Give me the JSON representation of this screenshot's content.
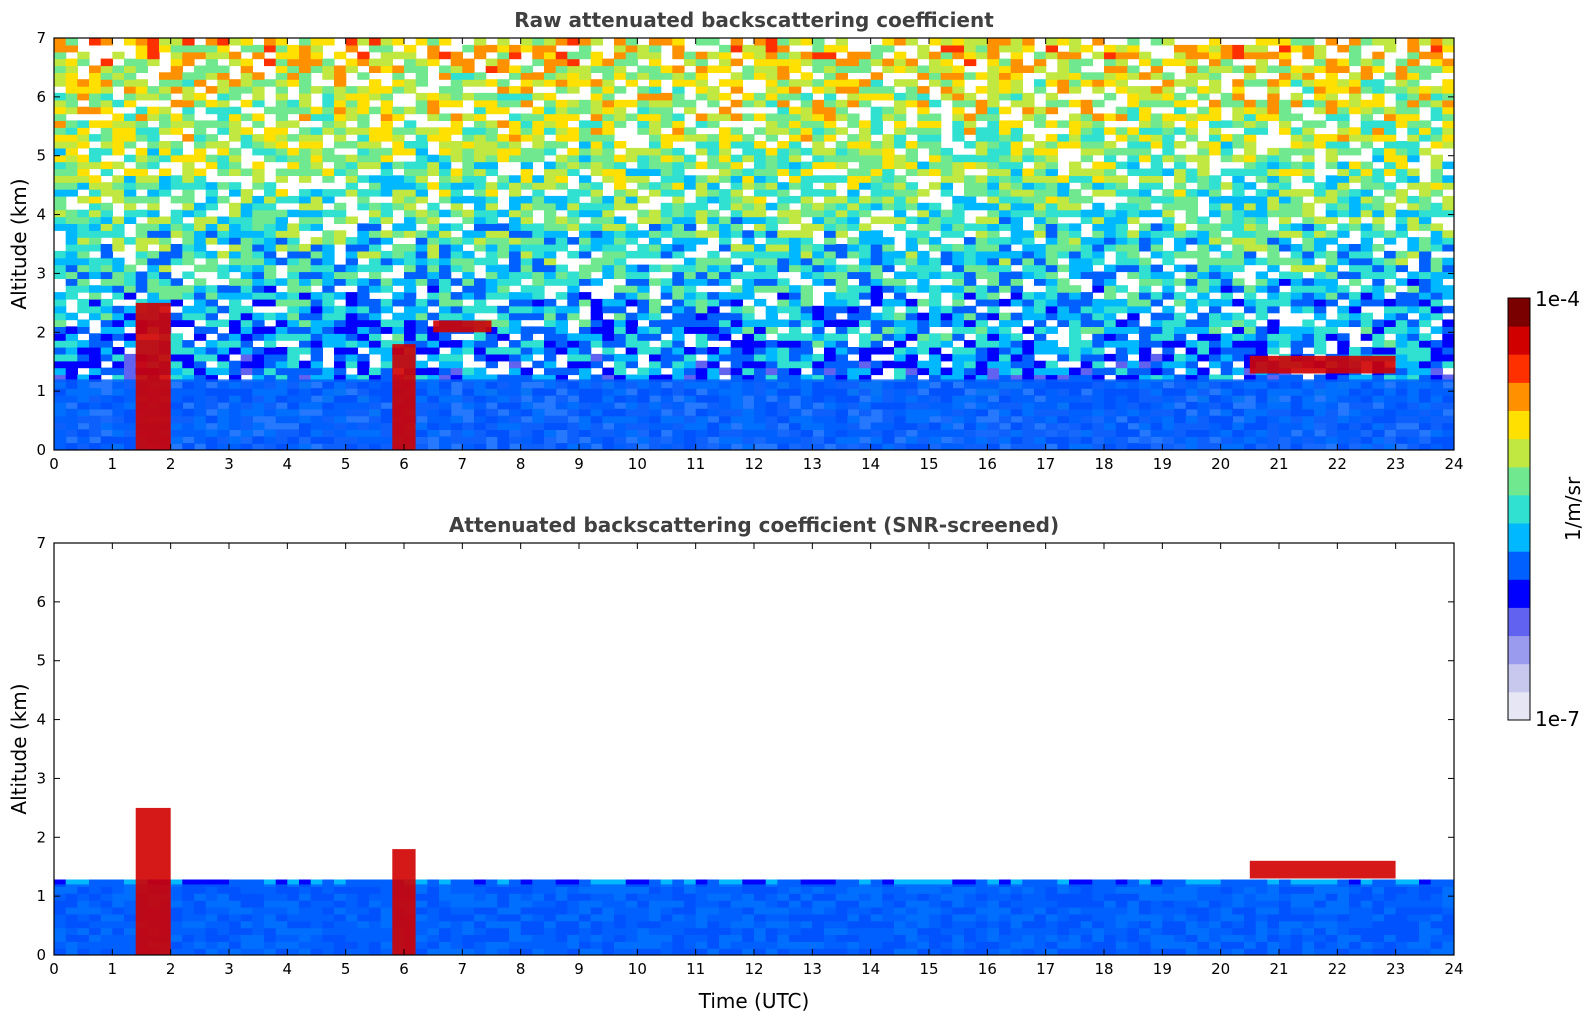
{
  "chart_data": [
    {
      "type": "heatmap",
      "title": "Raw attenuated backscattering coefficient",
      "xlabel": "",
      "ylabel": "Altitude (km)",
      "xlim": [
        0,
        24
      ],
      "ylim": [
        0,
        7
      ],
      "xticks": [
        "0",
        "1",
        "2",
        "3",
        "4",
        "5",
        "6",
        "7",
        "8",
        "9",
        "10",
        "11",
        "12",
        "13",
        "14",
        "15",
        "16",
        "17",
        "18",
        "19",
        "20",
        "21",
        "22",
        "23",
        "24"
      ],
      "yticks": [
        "0",
        "1",
        "2",
        "3",
        "4",
        "5",
        "6",
        "7"
      ],
      "features": [
        {
          "label": "boundary layer",
          "x": [
            0,
            24
          ],
          "y": [
            0,
            1.2
          ]
        },
        {
          "label": "cloud",
          "x": [
            1.4,
            2.0
          ],
          "y": [
            0,
            2.5
          ]
        },
        {
          "label": "cloud",
          "x": [
            5.8,
            6.2
          ],
          "y": [
            0,
            1.8
          ]
        },
        {
          "label": "cloud",
          "x": [
            6.5,
            7.5
          ],
          "y": [
            2.0,
            2.2
          ]
        },
        {
          "label": "cloud",
          "x": [
            20.5,
            23.0
          ],
          "y": [
            1.3,
            1.6
          ]
        }
      ]
    },
    {
      "type": "heatmap",
      "title": "Attenuated backscattering coefficient (SNR-screened)",
      "xlabel": "Time (UTC)",
      "ylabel": "Altitude (km)",
      "xlim": [
        0,
        24
      ],
      "ylim": [
        0,
        7
      ],
      "xticks": [
        "0",
        "1",
        "2",
        "3",
        "4",
        "5",
        "6",
        "7",
        "8",
        "9",
        "10",
        "11",
        "12",
        "13",
        "14",
        "15",
        "16",
        "17",
        "18",
        "19",
        "20",
        "21",
        "22",
        "23",
        "24"
      ],
      "yticks": [
        "0",
        "1",
        "2",
        "3",
        "4",
        "5",
        "6",
        "7"
      ],
      "features": [
        {
          "label": "boundary layer",
          "x": [
            0,
            24
          ],
          "y": [
            0,
            1.2
          ]
        },
        {
          "label": "cloud",
          "x": [
            1.4,
            2.0
          ],
          "y": [
            0,
            2.5
          ]
        },
        {
          "label": "cloud",
          "x": [
            5.8,
            6.2
          ],
          "y": [
            0,
            1.8
          ]
        },
        {
          "label": "cloud",
          "x": [
            20.5,
            23.0
          ],
          "y": [
            1.3,
            1.6
          ]
        }
      ]
    }
  ],
  "colorbar": {
    "label": "1/m/sr",
    "max_label": "1e-4",
    "min_label": "1e-7",
    "colors": [
      "#e6e6f5",
      "#c8c8ef",
      "#9a9aee",
      "#6262f0",
      "#0000ff",
      "#0060ff",
      "#00b8ff",
      "#30e0d0",
      "#70e890",
      "#c0e840",
      "#ffe000",
      "#ff9000",
      "#ff3000",
      "#d00000",
      "#7a0000"
    ]
  }
}
